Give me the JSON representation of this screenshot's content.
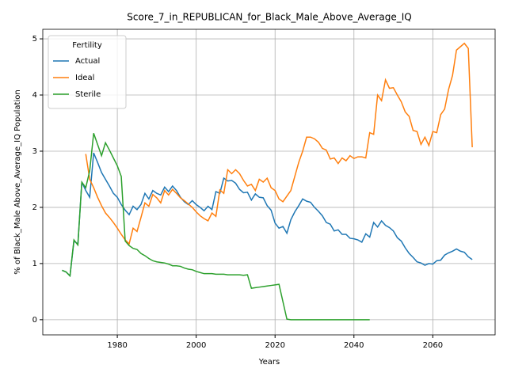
{
  "chart_data": {
    "type": "line",
    "title": "Score_7_in_REPUBLICAN_for_Black_Male_Above_Average_IQ",
    "xlabel": "Years",
    "ylabel": "% of Black_Male Above_Average_IQ Population",
    "legend_title": "Fertility",
    "legend": "upper left",
    "grid": true,
    "xlim": [
      1961.1,
      2075.8
    ],
    "ylim": [
      -0.27,
      5.17
    ],
    "xticks": [
      1980,
      2000,
      2020,
      2040,
      2060
    ],
    "yticks": [
      0,
      1,
      2,
      3,
      4,
      5
    ],
    "x": [
      1966,
      1967,
      1968,
      1969,
      1970,
      1971,
      1972,
      1973,
      1974,
      1975,
      1976,
      1977,
      1978,
      1979,
      1980,
      1981,
      1982,
      1983,
      1984,
      1985,
      1986,
      1987,
      1988,
      1989,
      1990,
      1991,
      1992,
      1993,
      1994,
      1995,
      1996,
      1997,
      1998,
      1999,
      2000,
      2001,
      2002,
      2003,
      2004,
      2005,
      2006,
      2007,
      2008,
      2009,
      2010,
      2011,
      2012,
      2013,
      2014,
      2015,
      2016,
      2017,
      2018,
      2019,
      2020,
      2021,
      2022,
      2023,
      2024,
      2025,
      2026,
      2027,
      2028,
      2029,
      2030,
      2031,
      2032,
      2033,
      2034,
      2035,
      2036,
      2037,
      2038,
      2039,
      2040,
      2041,
      2042,
      2043,
      2044,
      2045,
      2046,
      2047,
      2048,
      2049,
      2050,
      2051,
      2052,
      2053,
      2054,
      2055,
      2056,
      2057,
      2058,
      2059,
      2060,
      2061,
      2062,
      2063,
      2064,
      2065,
      2066,
      2067,
      2068,
      2069,
      2070
    ],
    "series": [
      {
        "name": "Actual",
        "color": "#1f77b4",
        "values": [
          0.88,
          0.85,
          0.78,
          1.4,
          1.35,
          2.45,
          2.3,
          2.18,
          2.97,
          2.8,
          2.62,
          2.5,
          2.38,
          2.25,
          2.18,
          2.05,
          1.95,
          1.87,
          2.02,
          1.96,
          2.05,
          2.25,
          2.15,
          2.3,
          2.25,
          2.22,
          2.36,
          2.28,
          2.38,
          2.3,
          2.18,
          2.1,
          2.05,
          2.12,
          2.05,
          2.0,
          1.94,
          2.02,
          1.96,
          2.28,
          2.25,
          2.52,
          2.47,
          2.48,
          2.43,
          2.32,
          2.26,
          2.27,
          2.13,
          2.24,
          2.18,
          2.17,
          2.03,
          1.95,
          1.72,
          1.63,
          1.66,
          1.54,
          1.78,
          1.92,
          2.03,
          2.15,
          2.11,
          2.09,
          2.0,
          1.93,
          1.85,
          1.73,
          1.7,
          1.58,
          1.6,
          1.52,
          1.52,
          1.45,
          1.44,
          1.42,
          1.38,
          1.53,
          1.47,
          1.73,
          1.65,
          1.76,
          1.68,
          1.64,
          1.58,
          1.46,
          1.4,
          1.28,
          1.18,
          1.11,
          1.03,
          1.01,
          0.97,
          1.0,
          0.99,
          1.05,
          1.06,
          1.15,
          1.19,
          1.22,
          1.26,
          1.22,
          1.2,
          1.12,
          1.07
        ]
      },
      {
        "name": "Ideal",
        "color": "#ff7f0e",
        "values": [
          null,
          null,
          null,
          null,
          null,
          null,
          2.95,
          2.5,
          2.35,
          2.18,
          2.03,
          1.9,
          1.82,
          1.73,
          1.63,
          1.52,
          1.42,
          1.35,
          1.63,
          1.57,
          1.82,
          2.08,
          2.02,
          2.23,
          2.17,
          2.08,
          2.3,
          2.22,
          2.32,
          2.25,
          2.17,
          2.12,
          2.06,
          2.0,
          1.92,
          1.85,
          1.8,
          1.76,
          1.9,
          1.84,
          2.31,
          2.25,
          2.67,
          2.6,
          2.67,
          2.6,
          2.48,
          2.38,
          2.41,
          2.3,
          2.5,
          2.45,
          2.52,
          2.35,
          2.3,
          2.15,
          2.1,
          2.2,
          2.3,
          2.55,
          2.8,
          3.0,
          3.25,
          3.25,
          3.22,
          3.16,
          3.05,
          3.02,
          2.86,
          2.88,
          2.78,
          2.88,
          2.83,
          2.92,
          2.87,
          2.9,
          2.9,
          2.88,
          3.33,
          3.3,
          4.0,
          3.9,
          4.27,
          4.12,
          4.13,
          4.0,
          3.88,
          3.7,
          3.62,
          3.37,
          3.35,
          3.12,
          3.25,
          3.1,
          3.35,
          3.33,
          3.65,
          3.75,
          4.1,
          4.35,
          4.8,
          4.86,
          4.92,
          4.83,
          3.07
        ]
      },
      {
        "name": "Sterile",
        "color": "#2ca02c",
        "values": [
          0.88,
          0.85,
          0.78,
          1.42,
          1.33,
          2.45,
          2.35,
          2.65,
          3.32,
          3.12,
          2.92,
          3.15,
          3.02,
          2.88,
          2.74,
          2.55,
          1.4,
          1.32,
          1.27,
          1.25,
          1.18,
          1.14,
          1.09,
          1.05,
          1.03,
          1.02,
          1.01,
          0.99,
          0.96,
          0.96,
          0.95,
          0.92,
          0.9,
          0.89,
          0.86,
          0.84,
          0.82,
          0.82,
          0.82,
          0.81,
          0.81,
          0.81,
          0.8,
          0.8,
          0.8,
          0.8,
          0.79,
          0.8,
          0.56,
          0.57,
          0.58,
          0.59,
          0.6,
          0.61,
          0.62,
          0.63,
          0.32,
          0.01,
          0,
          0,
          0,
          0,
          0,
          0,
          0,
          0,
          0,
          0,
          0,
          0,
          0,
          0,
          0,
          0,
          0,
          0,
          0,
          0,
          0,
          null,
          null,
          null,
          null,
          null,
          null,
          null,
          null,
          null,
          null,
          null,
          null,
          null,
          null,
          null,
          null,
          null,
          null,
          null,
          null,
          null,
          null,
          null,
          null,
          null,
          null
        ]
      }
    ]
  }
}
